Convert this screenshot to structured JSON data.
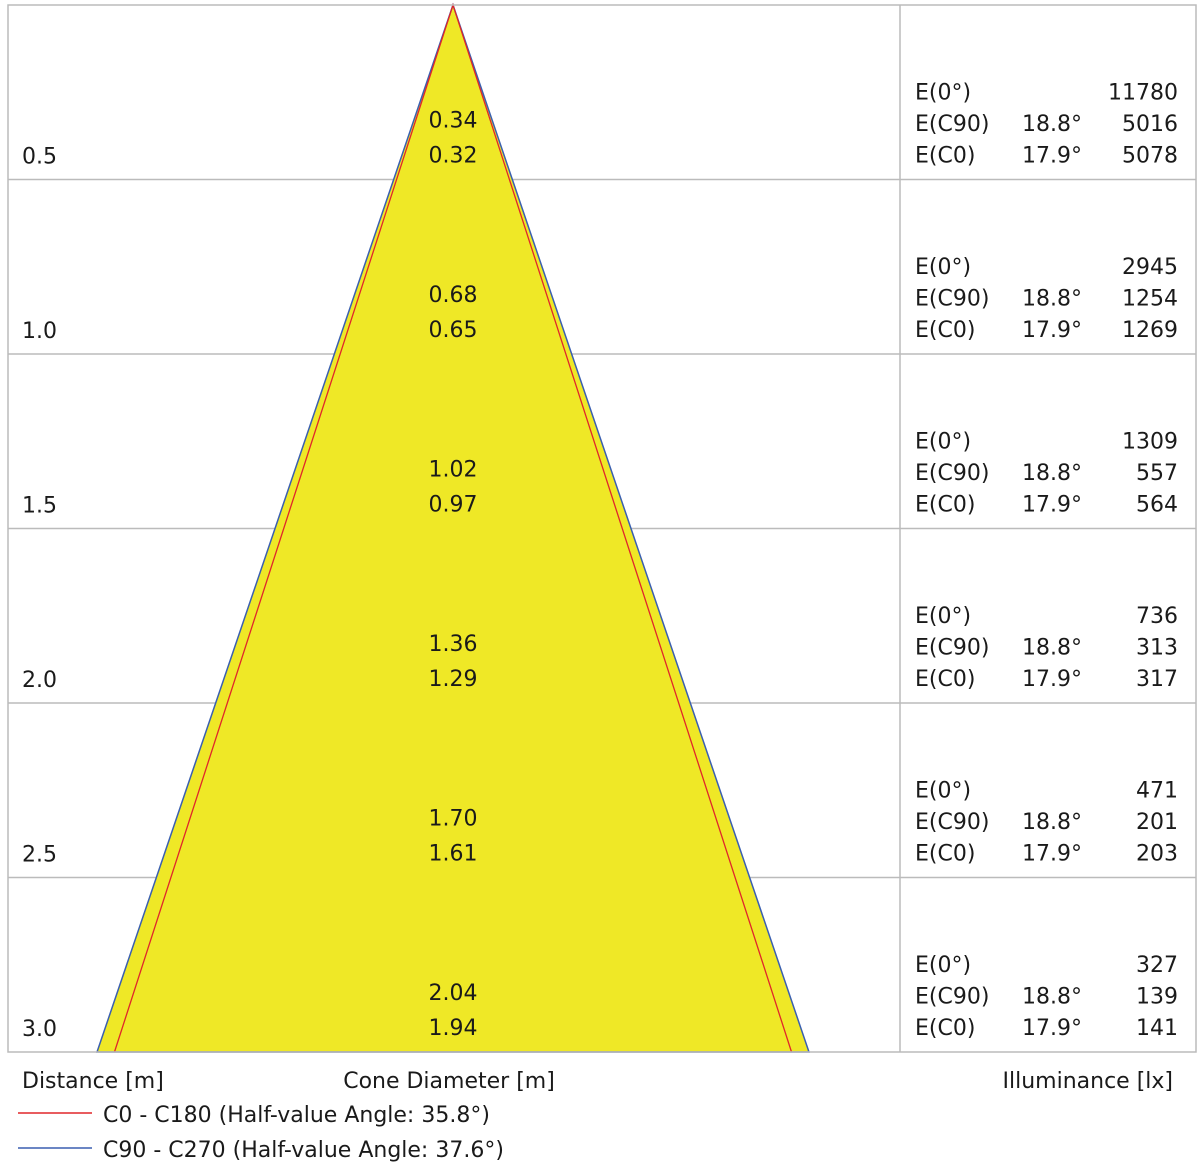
{
  "rows": [
    {
      "distance": "0.5",
      "diameter_c90": "0.34",
      "diameter_c0": "0.32",
      "illuminance": [
        {
          "label": "E(0°)",
          "value": 11780
        },
        {
          "label": "E(C90)",
          "angle": "18.8°",
          "value": 5016
        },
        {
          "label": "E(C0)",
          "angle": "17.9°",
          "value": 5078
        }
      ]
    },
    {
      "distance": "1.0",
      "diameter_c90": "0.68",
      "diameter_c0": "0.65",
      "illuminance": [
        {
          "label": "E(0°)",
          "value": 2945
        },
        {
          "label": "E(C90)",
          "angle": "18.8°",
          "value": 1254
        },
        {
          "label": "E(C0)",
          "angle": "17.9°",
          "value": 1269
        }
      ]
    },
    {
      "distance": "1.5",
      "diameter_c90": "1.02",
      "diameter_c0": "0.97",
      "illuminance": [
        {
          "label": "E(0°)",
          "value": 1309
        },
        {
          "label": "E(C90)",
          "angle": "18.8°",
          "value": 557
        },
        {
          "label": "E(C0)",
          "angle": "17.9°",
          "value": 564
        }
      ]
    },
    {
      "distance": "2.0",
      "diameter_c90": "1.36",
      "diameter_c0": "1.29",
      "illuminance": [
        {
          "label": "E(0°)",
          "value": 736
        },
        {
          "label": "E(C90)",
          "angle": "18.8°",
          "value": 313
        },
        {
          "label": "E(C0)",
          "angle": "17.9°",
          "value": 317
        }
      ]
    },
    {
      "distance": "2.5",
      "diameter_c90": "1.70",
      "diameter_c0": "1.61",
      "illuminance": [
        {
          "label": "E(0°)",
          "value": 471
        },
        {
          "label": "E(C90)",
          "angle": "18.8°",
          "value": 201
        },
        {
          "label": "E(C0)",
          "angle": "17.9°",
          "value": 203
        }
      ]
    },
    {
      "distance": "3.0",
      "diameter_c90": "2.04",
      "diameter_c0": "1.94",
      "illuminance": [
        {
          "label": "E(0°)",
          "value": 327
        },
        {
          "label": "E(C90)",
          "angle": "18.8°",
          "value": 139
        },
        {
          "label": "E(C0)",
          "angle": "17.9°",
          "value": 141
        }
      ]
    }
  ],
  "footer": {
    "distance": "Distance [m]",
    "cone_diameter": "Cone Diameter [m]",
    "illuminance": "Illuminance [lx]"
  },
  "legend": [
    {
      "label": "C0 - C180 (Half-value Angle: 35.8°)",
      "color": "#e0262a"
    },
    {
      "label": "C90 - C270 (Half-value Angle: 37.6°)",
      "color": "#3a5fb0"
    }
  ]
}
